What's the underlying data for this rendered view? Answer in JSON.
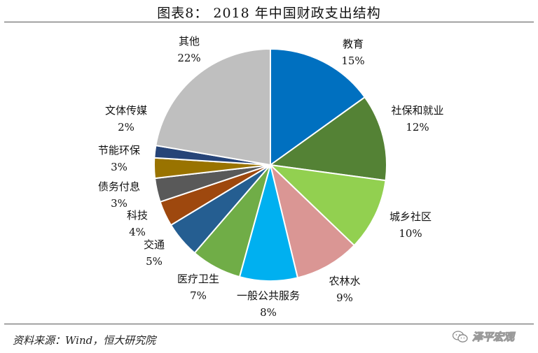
{
  "header": {
    "title": "图表8：  2018 年中国财政支出结构"
  },
  "footer": {
    "source": "资料来源：Wind，恒大研究院",
    "watermark": "泽平宏观"
  },
  "icons": {
    "watermark_icon": "wechat-icon"
  },
  "chart_data": {
    "type": "pie",
    "title": "图表8：  2018 年中国财政支出结构",
    "start_angle_deg": 0,
    "direction": "clockwise",
    "slices": [
      {
        "label": "教育",
        "pct_label": "15%",
        "value": 15.0,
        "color": "#0070C0"
      },
      {
        "label": "社保和就业",
        "pct_label": "12%",
        "value": 12.0,
        "color": "#548235"
      },
      {
        "label": "城乡社区",
        "pct_label": "10%",
        "value": 10.0,
        "color": "#92D050"
      },
      {
        "label": "农林水",
        "pct_label": "9%",
        "value": 9.0,
        "color": "#DA9694"
      },
      {
        "label": "一般公共服务",
        "pct_label": "8%",
        "value": 8.0,
        "color": "#00B0F0"
      },
      {
        "label": "医疗卫生",
        "pct_label": "7%",
        "value": 7.0,
        "color": "#70AD47"
      },
      {
        "label": "交通",
        "pct_label": "5%",
        "value": 5.0,
        "color": "#255E91"
      },
      {
        "label": "科技",
        "pct_label": "4%",
        "value": 3.5,
        "color": "#9E480E"
      },
      {
        "label": "债务付息",
        "pct_label": "3%",
        "value": 3.3,
        "color": "#595959"
      },
      {
        "label": "节能环保",
        "pct_label": "3%",
        "value": 2.8,
        "color": "#997300"
      },
      {
        "label": "文体传媒",
        "pct_label": "2%",
        "value": 1.7,
        "color": "#264478"
      },
      {
        "label": "其他",
        "pct_label": "22%",
        "value": 22.2,
        "color": "#BFBFBF"
      }
    ]
  }
}
